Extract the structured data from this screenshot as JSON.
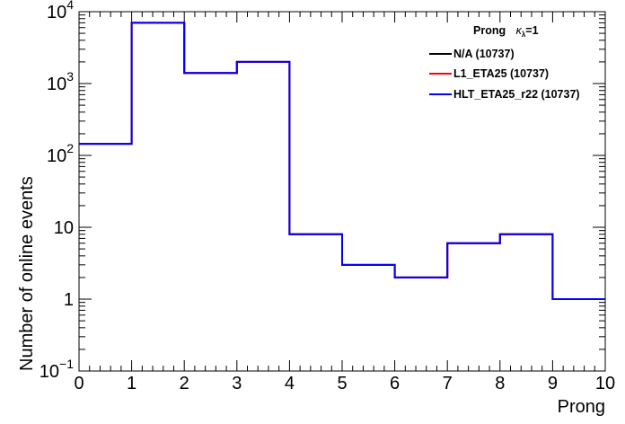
{
  "chart_data": {
    "type": "step",
    "xlabel": "Prong",
    "ylabel": "Number of online events",
    "xlim": [
      0,
      10
    ],
    "ylim": [
      0.1,
      10000
    ],
    "yscale": "log",
    "x_ticks": [
      "0",
      "1",
      "2",
      "3",
      "4",
      "5",
      "6",
      "7",
      "8",
      "9",
      "10"
    ],
    "y_ticks": [
      {
        "value": 0.1,
        "base": "10",
        "exp": "−1"
      },
      {
        "value": 1,
        "label": "1"
      },
      {
        "value": 10,
        "label": "10"
      },
      {
        "value": 100,
        "base": "10",
        "exp": "2"
      },
      {
        "value": 1000,
        "base": "10",
        "exp": "3"
      },
      {
        "value": 10000,
        "base": "10",
        "exp": "4"
      }
    ],
    "bin_edges": [
      0,
      1,
      2,
      3,
      4,
      5,
      6,
      7,
      8,
      9,
      10
    ],
    "series": [
      {
        "name": "N/A (10737)",
        "color": "#000000",
        "values": [
          145,
          7000,
          1400,
          2000,
          8,
          3,
          2,
          6,
          8,
          1
        ]
      },
      {
        "name": "L1_ETA25 (10737)",
        "color": "#ff0000",
        "values": [
          145,
          7000,
          1400,
          2000,
          8,
          3,
          2,
          6,
          8,
          1
        ]
      },
      {
        "name": "HLT_ETA25_r22 (10737)",
        "color": "#0000ff",
        "values": [
          145,
          7000,
          1400,
          2000,
          8,
          3,
          2,
          6,
          8,
          1
        ]
      }
    ],
    "legend": {
      "title_main": "Prong",
      "title_kappa": "κ",
      "title_sub": "λ",
      "title_tail": "=1",
      "position": "top-right"
    },
    "grid": false
  }
}
